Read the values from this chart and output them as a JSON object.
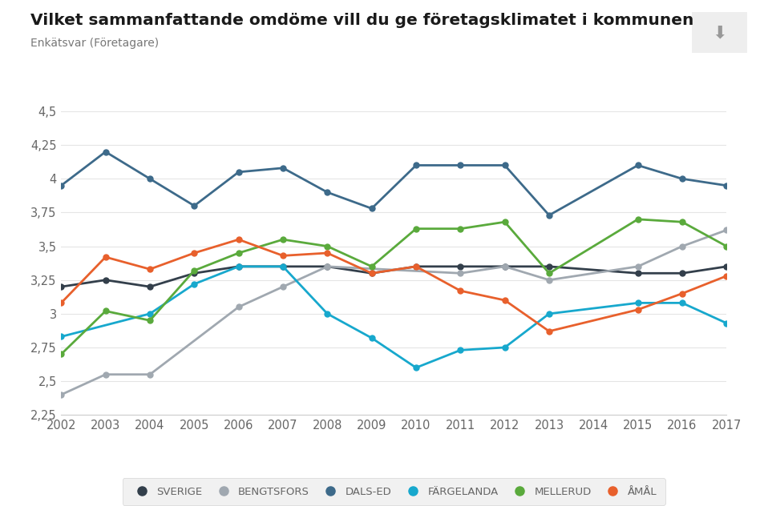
{
  "title": "Vilket sammanfattande omdöme vill du ge företagsklimatet i kommunen",
  "subtitle": "Enkätsvar (Företagare)",
  "years": [
    2002,
    2003,
    2004,
    2005,
    2006,
    2007,
    2008,
    2009,
    2010,
    2011,
    2012,
    2013,
    2014,
    2015,
    2016,
    2017
  ],
  "series": {
    "SVERIGE": {
      "color": "#333f4b",
      "values": [
        3.2,
        3.25,
        3.2,
        3.3,
        3.35,
        3.35,
        3.35,
        3.3,
        3.35,
        3.35,
        3.35,
        3.35,
        null,
        3.3,
        3.3,
        3.35
      ]
    },
    "BENGTSFORS": {
      "color": "#a0a8b0",
      "values": [
        2.4,
        2.55,
        2.55,
        null,
        3.05,
        3.2,
        3.35,
        null,
        null,
        3.3,
        3.35,
        3.25,
        null,
        3.35,
        3.5,
        3.62
      ]
    },
    "DALS-ED": {
      "color": "#3d6a8a",
      "values": [
        3.95,
        4.2,
        4.0,
        3.8,
        4.05,
        4.08,
        3.9,
        3.78,
        4.1,
        4.1,
        4.1,
        3.73,
        null,
        4.1,
        4.0,
        3.95
      ]
    },
    "FÄRGELANDA": {
      "color": "#17a8cd",
      "values": [
        2.83,
        null,
        3.0,
        3.22,
        3.35,
        3.35,
        3.0,
        2.82,
        2.6,
        2.73,
        2.75,
        3.0,
        null,
        3.08,
        3.08,
        2.93
      ]
    },
    "MELLERUD": {
      "color": "#5aaa3c",
      "values": [
        2.7,
        3.02,
        2.95,
        3.32,
        3.45,
        3.55,
        3.5,
        3.35,
        3.63,
        3.63,
        3.68,
        3.3,
        null,
        3.7,
        3.68,
        3.5
      ]
    },
    "ÅMÅL": {
      "color": "#e8602c",
      "values": [
        3.08,
        3.42,
        3.33,
        3.45,
        3.55,
        3.43,
        3.45,
        3.3,
        3.35,
        3.17,
        3.1,
        2.87,
        null,
        3.03,
        3.15,
        3.28
      ]
    }
  },
  "ylim": [
    2.25,
    4.5
  ],
  "yticks": [
    2.25,
    2.5,
    2.75,
    3.0,
    3.25,
    3.5,
    3.75,
    4.0,
    4.25,
    4.5
  ],
  "ytick_labels": [
    "2,25",
    "2,5",
    "2,75",
    "3",
    "3,25",
    "3,5",
    "3,75",
    "4",
    "4,25",
    "4,5"
  ],
  "background_color": "#ffffff",
  "grid_color": "#e5e5e5",
  "legend_bg": "#eeeeee"
}
